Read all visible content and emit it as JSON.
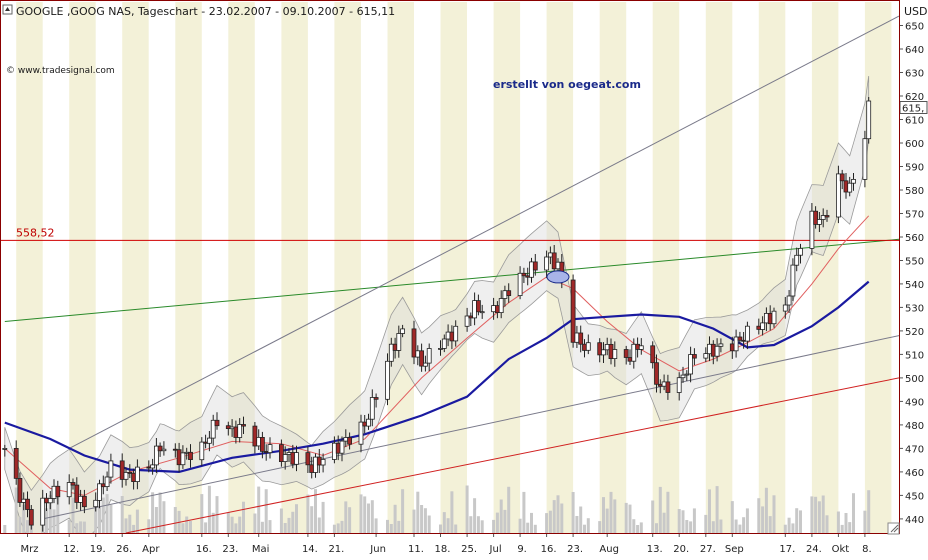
{
  "header": {
    "title": "GOOGLE ,GOOG NAS, Tageschart - 23.02.2007 - 09.10.2007 - 615,11",
    "currency": "USD",
    "watermark": "© www.tradesignal.com",
    "credit": "erstellt von oegeat.com"
  },
  "chart_data": {
    "type": "candlestick",
    "title": "GOOGLE ,GOOG NAS, Tageschart - 23.02.2007 - 09.10.2007 - 615,11",
    "ylabel": "USD",
    "ylim": [
      434,
      660
    ],
    "yticks": [
      440,
      450,
      460,
      470,
      480,
      490,
      500,
      510,
      520,
      530,
      540,
      550,
      560,
      570,
      580,
      590,
      600,
      610,
      620,
      630,
      640,
      650
    ],
    "last_value_label": "615,",
    "last_value": 615.11,
    "level_line": {
      "value": 558.52,
      "label": "558,52",
      "color": "#d00000"
    },
    "x_tick_labels": [
      {
        "date": "2007-03-01",
        "label": "Mrz"
      },
      {
        "date": "2007-03-12",
        "label": "12."
      },
      {
        "date": "2007-03-19",
        "label": "19."
      },
      {
        "date": "2007-03-26",
        "label": "26."
      },
      {
        "date": "2007-04-02",
        "label": "Apr"
      },
      {
        "date": "2007-04-16",
        "label": "16."
      },
      {
        "date": "2007-04-23",
        "label": "23."
      },
      {
        "date": "2007-05-01",
        "label": "Mai"
      },
      {
        "date": "2007-05-14",
        "label": "14."
      },
      {
        "date": "2007-05-21",
        "label": "21."
      },
      {
        "date": "2007-06-01",
        "label": "Jun"
      },
      {
        "date": "2007-06-11",
        "label": "11."
      },
      {
        "date": "2007-06-18",
        "label": "18."
      },
      {
        "date": "2007-06-25",
        "label": "25."
      },
      {
        "date": "2007-07-02",
        "label": "Jul"
      },
      {
        "date": "2007-07-09",
        "label": "9."
      },
      {
        "date": "2007-07-16",
        "label": "16."
      },
      {
        "date": "2007-07-23",
        "label": "23."
      },
      {
        "date": "2007-08-01",
        "label": "Aug"
      },
      {
        "date": "2007-08-13",
        "label": "13."
      },
      {
        "date": "2007-08-20",
        "label": "20."
      },
      {
        "date": "2007-08-27",
        "label": "27."
      },
      {
        "date": "2007-09-03",
        "label": "Sep"
      },
      {
        "date": "2007-09-17",
        "label": "17."
      },
      {
        "date": "2007-09-24",
        "label": "24."
      },
      {
        "date": "2007-10-01",
        "label": "Okt"
      },
      {
        "date": "2007-10-08",
        "label": "8."
      }
    ],
    "close_series": [
      {
        "date": "2007-02-23",
        "close": 470
      },
      {
        "date": "2007-02-27",
        "close": 450
      },
      {
        "date": "2007-03-02",
        "close": 440
      },
      {
        "date": "2007-03-07",
        "close": 450
      },
      {
        "date": "2007-03-12",
        "close": 455
      },
      {
        "date": "2007-03-16",
        "close": 445
      },
      {
        "date": "2007-03-20",
        "close": 452
      },
      {
        "date": "2007-03-23",
        "close": 462
      },
      {
        "date": "2007-03-28",
        "close": 458
      },
      {
        "date": "2007-04-02",
        "close": 462
      },
      {
        "date": "2007-04-05",
        "close": 471
      },
      {
        "date": "2007-04-10",
        "close": 466
      },
      {
        "date": "2007-04-16",
        "close": 470
      },
      {
        "date": "2007-04-20",
        "close": 482
      },
      {
        "date": "2007-04-24",
        "close": 477
      },
      {
        "date": "2007-04-27",
        "close": 479
      },
      {
        "date": "2007-05-02",
        "close": 470
      },
      {
        "date": "2007-05-07",
        "close": 467
      },
      {
        "date": "2007-05-11",
        "close": 466
      },
      {
        "date": "2007-05-15",
        "close": 462
      },
      {
        "date": "2007-05-18",
        "close": 466
      },
      {
        "date": "2007-05-23",
        "close": 472
      },
      {
        "date": "2007-05-29",
        "close": 480
      },
      {
        "date": "2007-06-01",
        "close": 493
      },
      {
        "date": "2007-06-05",
        "close": 512
      },
      {
        "date": "2007-06-08",
        "close": 520
      },
      {
        "date": "2007-06-13",
        "close": 506
      },
      {
        "date": "2007-06-18",
        "close": 515
      },
      {
        "date": "2007-06-22",
        "close": 520
      },
      {
        "date": "2007-06-27",
        "close": 530
      },
      {
        "date": "2007-07-02",
        "close": 528
      },
      {
        "date": "2007-07-06",
        "close": 538
      },
      {
        "date": "2007-07-11",
        "close": 545
      },
      {
        "date": "2007-07-16",
        "close": 552
      },
      {
        "date": "2007-07-19",
        "close": 548
      },
      {
        "date": "2007-07-23",
        "close": 518
      },
      {
        "date": "2007-07-27",
        "close": 512
      },
      {
        "date": "2007-08-01",
        "close": 512
      },
      {
        "date": "2007-08-06",
        "close": 508
      },
      {
        "date": "2007-08-10",
        "close": 515
      },
      {
        "date": "2007-08-15",
        "close": 496
      },
      {
        "date": "2007-08-20",
        "close": 498
      },
      {
        "date": "2007-08-24",
        "close": 510
      },
      {
        "date": "2007-08-29",
        "close": 512
      },
      {
        "date": "2007-09-04",
        "close": 515
      },
      {
        "date": "2007-09-07",
        "close": 519
      },
      {
        "date": "2007-09-12",
        "close": 525
      },
      {
        "date": "2007-09-17",
        "close": 530
      },
      {
        "date": "2007-09-20",
        "close": 553
      },
      {
        "date": "2007-09-24",
        "close": 568
      },
      {
        "date": "2007-09-27",
        "close": 567
      },
      {
        "date": "2007-10-01",
        "close": 585
      },
      {
        "date": "2007-10-04",
        "close": 580
      },
      {
        "date": "2007-10-08",
        "close": 603
      },
      {
        "date": "2007-10-09",
        "close": 615
      }
    ],
    "ma_long": {
      "color": "#1a1aa0",
      "values": [
        {
          "date": "2007-02-23",
          "close": 481
        },
        {
          "date": "2007-03-07",
          "close": 474
        },
        {
          "date": "2007-03-16",
          "close": 467
        },
        {
          "date": "2007-03-28",
          "close": 461
        },
        {
          "date": "2007-04-10",
          "close": 460
        },
        {
          "date": "2007-04-24",
          "close": 466
        },
        {
          "date": "2007-05-07",
          "close": 469
        },
        {
          "date": "2007-05-18",
          "close": 472
        },
        {
          "date": "2007-05-29",
          "close": 476
        },
        {
          "date": "2007-06-13",
          "close": 484
        },
        {
          "date": "2007-06-25",
          "close": 492
        },
        {
          "date": "2007-07-06",
          "close": 508
        },
        {
          "date": "2007-07-16",
          "close": 517
        },
        {
          "date": "2007-07-23",
          "close": 525
        },
        {
          "date": "2007-08-01",
          "close": 526
        },
        {
          "date": "2007-08-10",
          "close": 527
        },
        {
          "date": "2007-08-20",
          "close": 526
        },
        {
          "date": "2007-08-29",
          "close": 521
        },
        {
          "date": "2007-09-07",
          "close": 513
        },
        {
          "date": "2007-09-14",
          "close": 514
        },
        {
          "date": "2007-09-24",
          "close": 522
        },
        {
          "date": "2007-10-01",
          "close": 530
        },
        {
          "date": "2007-10-09",
          "close": 541
        }
      ]
    },
    "ma_short": {
      "color": "#e06060",
      "values": [
        {
          "date": "2007-02-23",
          "close": 470
        },
        {
          "date": "2007-03-07",
          "close": 453
        },
        {
          "date": "2007-03-16",
          "close": 450
        },
        {
          "date": "2007-03-28",
          "close": 460
        },
        {
          "date": "2007-04-10",
          "close": 466
        },
        {
          "date": "2007-04-24",
          "close": 473
        },
        {
          "date": "2007-05-07",
          "close": 472
        },
        {
          "date": "2007-05-18",
          "close": 467
        },
        {
          "date": "2007-05-29",
          "close": 474
        },
        {
          "date": "2007-06-13",
          "close": 500
        },
        {
          "date": "2007-06-25",
          "close": 517
        },
        {
          "date": "2007-07-06",
          "close": 532
        },
        {
          "date": "2007-07-16",
          "close": 543
        },
        {
          "date": "2007-07-23",
          "close": 538
        },
        {
          "date": "2007-08-01",
          "close": 524
        },
        {
          "date": "2007-08-10",
          "close": 512
        },
        {
          "date": "2007-08-20",
          "close": 503
        },
        {
          "date": "2007-08-29",
          "close": 508
        },
        {
          "date": "2007-09-07",
          "close": 515
        },
        {
          "date": "2007-09-14",
          "close": 521
        },
        {
          "date": "2007-09-24",
          "close": 540
        },
        {
          "date": "2007-10-01",
          "close": 555
        },
        {
          "date": "2007-10-09",
          "close": 569
        }
      ]
    },
    "trend_lines": [
      {
        "from": {
          "date": "2007-02-23",
          "close": 524
        },
        "to": {
          "date": "2007-10-17",
          "close": 559
        },
        "color": "#2a8a2a"
      },
      {
        "from": {
          "date": "2007-03-12",
          "close": 470
        },
        "to": {
          "date": "2007-10-17",
          "close": 654
        },
        "color": "#7a7a8a"
      },
      {
        "from": {
          "date": "2007-03-05",
          "close": 440
        },
        "to": {
          "date": "2007-10-17",
          "close": 518
        },
        "color": "#7a7a8a"
      },
      {
        "from": {
          "date": "2007-03-27",
          "close": 434
        },
        "to": {
          "date": "2007-10-17",
          "close": 500
        },
        "color": "#d02020"
      }
    ],
    "highlight_ellipse": {
      "date": "2007-07-19",
      "close": 543
    }
  }
}
